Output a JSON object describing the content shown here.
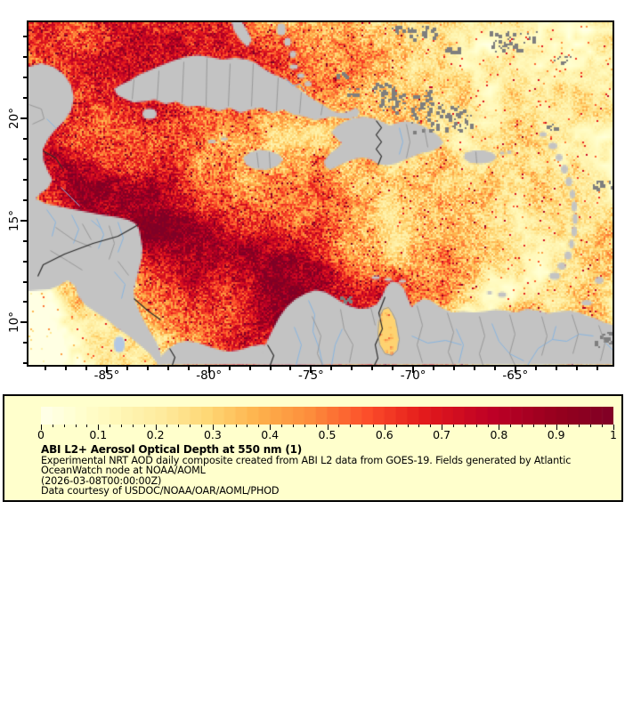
{
  "map": {
    "x_axis": {
      "majors": [
        {
          "label": "-85°",
          "lon": -85
        },
        {
          "label": "-80°",
          "lon": -80
        },
        {
          "label": "-75°",
          "lon": -75
        },
        {
          "label": "-70°",
          "lon": -70
        },
        {
          "label": "-65°",
          "lon": -65
        }
      ]
    },
    "y_axis": {
      "majors": [
        {
          "label": "10°",
          "lat": 10
        },
        {
          "label": "15°",
          "lat": 15
        },
        {
          "label": "20°",
          "lat": 20
        }
      ]
    }
  },
  "legend": {
    "title": "ABI L2+ Aerosol Optical Depth at 550 nm (1)",
    "lines": [
      "Experimental NRT AOD daily composite created from ABI L2 data from GOES-19. Fields generated by Atlantic",
      "OceanWatch node at NOAA/AOML",
      "(2026-03-08T00:00:00Z)",
      "Data courtesy of USDOC/NOAA/OAR/AOML/PHOD"
    ],
    "colorbar": {
      "min": 0,
      "max": 1,
      "segments": 50,
      "tick_labels": [
        "0",
        "0.1",
        "0.2",
        "0.3",
        "0.4",
        "0.5",
        "0.6",
        "0.7",
        "0.8",
        "0.9",
        "1"
      ]
    }
  },
  "colors": {
    "page_bg": "#ffffff",
    "frame": "#000000",
    "legend_bg": "#ffffcc",
    "land": "#c3c3c3",
    "cloud": "#7e7e7e",
    "admin_border": "#999999",
    "intl_border": "#2b2b2b",
    "river": "#88b5e0",
    "lake": "#b2c8e4",
    "aod_stops": [
      [
        0.0,
        "#ffffeb"
      ],
      [
        0.06,
        "#ffffd2"
      ],
      [
        0.13,
        "#fff8b8"
      ],
      [
        0.21,
        "#feeb9e"
      ],
      [
        0.29,
        "#fed876"
      ],
      [
        0.38,
        "#feb24c"
      ],
      [
        0.47,
        "#fd8d3c"
      ],
      [
        0.57,
        "#fc4e2a"
      ],
      [
        0.67,
        "#e31a1c"
      ],
      [
        0.79,
        "#bd0026"
      ],
      [
        0.91,
        "#94001e"
      ],
      [
        1.0,
        "#800026"
      ]
    ]
  }
}
